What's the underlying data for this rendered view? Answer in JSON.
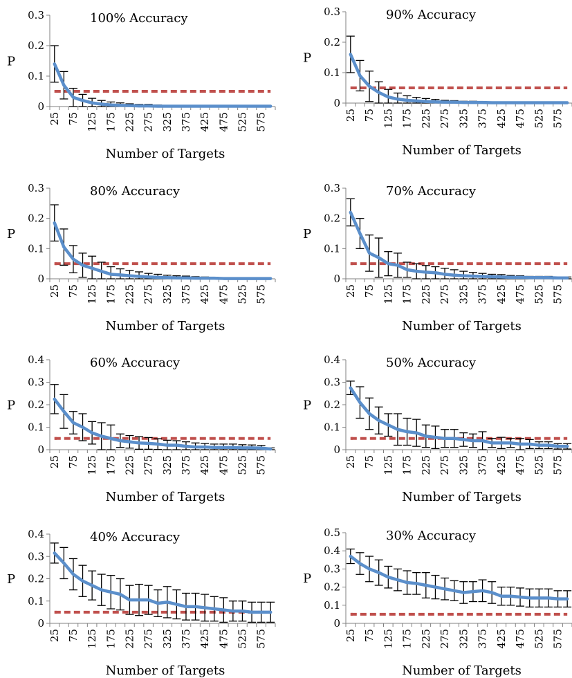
{
  "figure": {
    "panel_layout": "4 rows x 2 columns"
  },
  "colors": {
    "mean_line": "#5B8FCB",
    "threshold_line": "#C0504D",
    "error_bars": "#000000",
    "axis": "#808080"
  },
  "chart_data": [
    {
      "type": "line",
      "title": "100% Accuracy",
      "xlabel": "Number of Targets",
      "ylabel": "P",
      "categories": [
        25,
        50,
        75,
        100,
        125,
        150,
        175,
        200,
        225,
        250,
        275,
        300,
        325,
        350,
        375,
        400,
        425,
        450,
        475,
        500,
        525,
        550,
        575,
        600
      ],
      "x_tick_labels": [
        "25",
        "75",
        "125",
        "175",
        "225",
        "275",
        "325",
        "375",
        "425",
        "475",
        "525",
        "575"
      ],
      "y_ticks": [
        "0",
        "0.1",
        "0.2",
        "0.3"
      ],
      "ylim": [
        0,
        0.3
      ],
      "series": [
        {
          "values": [
            0.14,
            0.07,
            0.03,
            0.02,
            0.012,
            0.008,
            0.005,
            0.004,
            0.003,
            0.002,
            0.002,
            0.001,
            0.001,
            0.001,
            0.001,
            0.001,
            0.001,
            0.001,
            0.001,
            0.001,
            0.001,
            0.001,
            0.001,
            0.001
          ],
          "error": [
            0.06,
            0.045,
            0.03,
            0.02,
            0.015,
            0.012,
            0.01,
            0.008,
            0.006,
            0.005,
            0.005,
            0.004,
            0,
            0,
            0,
            0,
            0,
            0,
            0,
            0,
            0,
            0,
            0,
            0
          ]
        },
        {
          "values": [
            0.05,
            0.05,
            0.05,
            0.05,
            0.05,
            0.05,
            0.05,
            0.05,
            0.05,
            0.05,
            0.05,
            0.05,
            0.05,
            0.05,
            0.05,
            0.05,
            0.05,
            0.05,
            0.05,
            0.05,
            0.05,
            0.05,
            0.05,
            0.05
          ]
        }
      ],
      "grid": false
    },
    {
      "type": "line",
      "title": "90% Accuracy",
      "xlabel": "Number of Targets",
      "ylabel": "P",
      "categories": [
        25,
        50,
        75,
        100,
        125,
        150,
        175,
        200,
        225,
        250,
        275,
        300,
        325,
        350,
        375,
        400,
        425,
        450,
        475,
        500,
        525,
        550,
        575,
        600
      ],
      "x_tick_labels": [
        "25",
        "75",
        "125",
        "175",
        "225",
        "275",
        "325",
        "375",
        "425",
        "475",
        "525",
        "575"
      ],
      "y_ticks": [
        "0",
        "0.1",
        "0.2",
        "0.3"
      ],
      "ylim": [
        0,
        0.3
      ],
      "series": [
        {
          "values": [
            0.16,
            0.09,
            0.055,
            0.035,
            0.02,
            0.013,
            0.009,
            0.007,
            0.005,
            0.004,
            0.003,
            0.003,
            0.002,
            0.002,
            0.002,
            0.001,
            0.001,
            0.001,
            0.001,
            0.001,
            0.001,
            0.001,
            0.001,
            0.001
          ],
          "error": [
            0.06,
            0.05,
            0.05,
            0.035,
            0.025,
            0.02,
            0.015,
            0.012,
            0.01,
            0.008,
            0.006,
            0.005,
            0.004,
            0.004,
            0.003,
            0,
            0,
            0,
            0,
            0,
            0,
            0,
            0,
            0
          ]
        },
        {
          "values": [
            0.05,
            0.05,
            0.05,
            0.05,
            0.05,
            0.05,
            0.05,
            0.05,
            0.05,
            0.05,
            0.05,
            0.05,
            0.05,
            0.05,
            0.05,
            0.05,
            0.05,
            0.05,
            0.05,
            0.05,
            0.05,
            0.05,
            0.05,
            0.05
          ]
        }
      ],
      "grid": false
    },
    {
      "type": "line",
      "title": "80% Accuracy",
      "xlabel": "Number of Targets",
      "ylabel": "P",
      "categories": [
        25,
        50,
        75,
        100,
        125,
        150,
        175,
        200,
        225,
        250,
        275,
        300,
        325,
        350,
        375,
        400,
        425,
        450,
        475,
        500,
        525,
        550,
        575,
        600
      ],
      "x_tick_labels": [
        "25",
        "75",
        "125",
        "175",
        "225",
        "275",
        "325",
        "375",
        "425",
        "475",
        "525",
        "575"
      ],
      "y_ticks": [
        "0",
        "0.1",
        "0.2",
        "0.3"
      ],
      "ylim": [
        0,
        0.3
      ],
      "series": [
        {
          "values": [
            0.185,
            0.105,
            0.065,
            0.045,
            0.035,
            0.025,
            0.015,
            0.013,
            0.01,
            0.008,
            0.006,
            0.005,
            0.004,
            0.003,
            0.003,
            0.002,
            0.002,
            0.002,
            0.001,
            0.001,
            0.001,
            0.001,
            0.001,
            0.001
          ],
          "error": [
            0.06,
            0.06,
            0.045,
            0.04,
            0.04,
            0.03,
            0.025,
            0.02,
            0.018,
            0.015,
            0.012,
            0.01,
            0.008,
            0.007,
            0.006,
            0.005,
            0.004,
            0.003,
            0,
            0,
            0,
            0,
            0,
            0
          ]
        },
        {
          "values": [
            0.05,
            0.05,
            0.05,
            0.05,
            0.05,
            0.05,
            0.05,
            0.05,
            0.05,
            0.05,
            0.05,
            0.05,
            0.05,
            0.05,
            0.05,
            0.05,
            0.05,
            0.05,
            0.05,
            0.05,
            0.05,
            0.05,
            0.05,
            0.05
          ]
        }
      ],
      "grid": false
    },
    {
      "type": "line",
      "title": "70% Accuracy",
      "xlabel": "Number of Targets",
      "ylabel": "P",
      "categories": [
        25,
        50,
        75,
        100,
        125,
        150,
        175,
        200,
        225,
        250,
        275,
        300,
        325,
        350,
        375,
        400,
        425,
        450,
        475,
        500,
        525,
        550,
        575,
        600
      ],
      "x_tick_labels": [
        "25",
        "75",
        "125",
        "175",
        "225",
        "275",
        "325",
        "375",
        "425",
        "475",
        "525",
        "575"
      ],
      "y_ticks": [
        "0",
        "0.1",
        "0.2",
        "0.3"
      ],
      "ylim": [
        0,
        0.3
      ],
      "series": [
        {
          "values": [
            0.22,
            0.15,
            0.085,
            0.07,
            0.05,
            0.045,
            0.03,
            0.025,
            0.022,
            0.02,
            0.015,
            0.012,
            0.01,
            0.009,
            0.008,
            0.007,
            0.006,
            0.005,
            0.005,
            0.004,
            0.004,
            0.004,
            0.003,
            0.003
          ],
          "error": [
            0.045,
            0.05,
            0.06,
            0.065,
            0.04,
            0.04,
            0.025,
            0.025,
            0.022,
            0.02,
            0.02,
            0.018,
            0.015,
            0.012,
            0.01,
            0.008,
            0.008,
            0.006,
            0.005,
            0.004,
            0.004,
            0.004,
            0.003,
            0.003
          ]
        },
        {
          "values": [
            0.05,
            0.05,
            0.05,
            0.05,
            0.05,
            0.05,
            0.05,
            0.05,
            0.05,
            0.05,
            0.05,
            0.05,
            0.05,
            0.05,
            0.05,
            0.05,
            0.05,
            0.05,
            0.05,
            0.05,
            0.05,
            0.05,
            0.05,
            0.05
          ]
        }
      ],
      "grid": false
    },
    {
      "type": "line",
      "title": "60% Accuracy",
      "xlabel": "Number of Targets",
      "ylabel": "P",
      "categories": [
        25,
        50,
        75,
        100,
        125,
        150,
        175,
        200,
        225,
        250,
        275,
        300,
        325,
        350,
        375,
        400,
        425,
        450,
        475,
        500,
        525,
        550,
        575,
        600
      ],
      "x_tick_labels": [
        "25",
        "75",
        "125",
        "175",
        "225",
        "275",
        "325",
        "375",
        "425",
        "475",
        "525",
        "575"
      ],
      "y_ticks": [
        "0",
        "0.1",
        "0.2",
        "0.3",
        "0.4"
      ],
      "ylim": [
        0,
        0.4
      ],
      "series": [
        {
          "values": [
            0.225,
            0.17,
            0.12,
            0.1,
            0.075,
            0.06,
            0.05,
            0.04,
            0.035,
            0.03,
            0.028,
            0.025,
            0.02,
            0.02,
            0.015,
            0.012,
            0.012,
            0.01,
            0.01,
            0.01,
            0.008,
            0.008,
            0.007,
            0.003
          ],
          "error": [
            0.065,
            0.075,
            0.05,
            0.06,
            0.05,
            0.06,
            0.06,
            0.03,
            0.028,
            0.028,
            0.026,
            0.024,
            0.022,
            0.02,
            0.02,
            0.018,
            0.016,
            0.015,
            0.015,
            0.015,
            0.014,
            0.013,
            0.012,
            0.005
          ]
        },
        {
          "values": [
            0.05,
            0.05,
            0.05,
            0.05,
            0.05,
            0.05,
            0.05,
            0.05,
            0.05,
            0.05,
            0.05,
            0.05,
            0.05,
            0.05,
            0.05,
            0.05,
            0.05,
            0.05,
            0.05,
            0.05,
            0.05,
            0.05,
            0.05,
            0.05
          ]
        }
      ],
      "grid": false
    },
    {
      "type": "line",
      "title": "50% Accuracy",
      "xlabel": "Number of Targets",
      "ylabel": "P",
      "categories": [
        25,
        50,
        75,
        100,
        125,
        150,
        175,
        200,
        225,
        250,
        275,
        300,
        325,
        350,
        375,
        400,
        425,
        450,
        475,
        500,
        525,
        550,
        575,
        600
      ],
      "x_tick_labels": [
        "25",
        "75",
        "125",
        "175",
        "225",
        "275",
        "325",
        "375",
        "425",
        "475",
        "525",
        "575"
      ],
      "y_ticks": [
        "0",
        "0.1",
        "0.2",
        "0.3",
        "0.4"
      ],
      "ylim": [
        0,
        0.4
      ],
      "series": [
        {
          "values": [
            0.275,
            0.21,
            0.16,
            0.13,
            0.11,
            0.09,
            0.08,
            0.075,
            0.06,
            0.055,
            0.05,
            0.05,
            0.045,
            0.04,
            0.04,
            0.03,
            0.03,
            0.03,
            0.025,
            0.025,
            0.02,
            0.02,
            0.015,
            0.015
          ],
          "error": [
            0.03,
            0.07,
            0.07,
            0.06,
            0.05,
            0.07,
            0.06,
            0.06,
            0.05,
            0.05,
            0.04,
            0.04,
            0.03,
            0.03,
            0.04,
            0.02,
            0.025,
            0.02,
            0.025,
            0.02,
            0.015,
            0.015,
            0.012,
            0.012
          ]
        },
        {
          "values": [
            0.05,
            0.05,
            0.05,
            0.05,
            0.05,
            0.05,
            0.05,
            0.05,
            0.05,
            0.05,
            0.05,
            0.05,
            0.05,
            0.05,
            0.05,
            0.05,
            0.05,
            0.05,
            0.05,
            0.05,
            0.05,
            0.05,
            0.05,
            0.05
          ]
        }
      ],
      "grid": false
    },
    {
      "type": "line",
      "title": "40% Accuracy",
      "xlabel": "Number of Targets",
      "ylabel": "P",
      "categories": [
        25,
        50,
        75,
        100,
        125,
        150,
        175,
        200,
        225,
        250,
        275,
        300,
        325,
        350,
        375,
        400,
        425,
        450,
        475,
        500,
        525,
        550,
        575,
        600
      ],
      "x_tick_labels": [
        "25",
        "75",
        "125",
        "175",
        "225",
        "275",
        "325",
        "375",
        "425",
        "475",
        "525",
        "575"
      ],
      "y_ticks": [
        "0",
        "0.1",
        "0.2",
        "0.3",
        "0.4"
      ],
      "ylim": [
        0,
        0.4
      ],
      "series": [
        {
          "values": [
            0.315,
            0.27,
            0.22,
            0.19,
            0.17,
            0.15,
            0.14,
            0.13,
            0.105,
            0.105,
            0.105,
            0.09,
            0.095,
            0.085,
            0.075,
            0.075,
            0.07,
            0.065,
            0.06,
            0.055,
            0.055,
            0.05,
            0.05,
            0.05
          ],
          "error": [
            0.045,
            0.07,
            0.07,
            0.07,
            0.065,
            0.07,
            0.075,
            0.07,
            0.065,
            0.07,
            0.065,
            0.06,
            0.07,
            0.065,
            0.06,
            0.06,
            0.06,
            0.055,
            0.055,
            0.045,
            0.045,
            0.045,
            0.045,
            0.045
          ]
        },
        {
          "values": [
            0.05,
            0.05,
            0.05,
            0.05,
            0.05,
            0.05,
            0.05,
            0.05,
            0.05,
            0.05,
            0.05,
            0.05,
            0.05,
            0.05,
            0.05,
            0.05,
            0.05,
            0.05,
            0.05,
            0.05,
            0.05,
            0.05,
            0.05,
            0.05
          ]
        }
      ],
      "grid": false
    },
    {
      "type": "line",
      "title": "30% Accuracy",
      "xlabel": "Number of Targets",
      "ylabel": "P",
      "categories": [
        25,
        50,
        75,
        100,
        125,
        150,
        175,
        200,
        225,
        250,
        275,
        300,
        325,
        350,
        375,
        400,
        425,
        450,
        475,
        500,
        525,
        550,
        575,
        600
      ],
      "x_tick_labels": [
        "25",
        "75",
        "125",
        "175",
        "225",
        "275",
        "325",
        "375",
        "425",
        "475",
        "525",
        "575"
      ],
      "y_ticks": [
        "0",
        "0.1",
        "0.2",
        "0.3",
        "0.4",
        "0.5"
      ],
      "ylim": [
        0,
        0.5
      ],
      "series": [
        {
          "values": [
            0.37,
            0.33,
            0.3,
            0.28,
            0.255,
            0.24,
            0.225,
            0.22,
            0.21,
            0.2,
            0.19,
            0.18,
            0.17,
            0.175,
            0.18,
            0.17,
            0.15,
            0.15,
            0.145,
            0.14,
            0.14,
            0.14,
            0.135,
            0.135
          ],
          "error": [
            0.04,
            0.06,
            0.07,
            0.07,
            0.06,
            0.06,
            0.065,
            0.06,
            0.07,
            0.065,
            0.06,
            0.055,
            0.06,
            0.055,
            0.06,
            0.06,
            0.05,
            0.05,
            0.05,
            0.05,
            0.05,
            0.05,
            0.045,
            0.045
          ]
        },
        {
          "values": [
            0.05,
            0.05,
            0.05,
            0.05,
            0.05,
            0.05,
            0.05,
            0.05,
            0.05,
            0.05,
            0.05,
            0.05,
            0.05,
            0.05,
            0.05,
            0.05,
            0.05,
            0.05,
            0.05,
            0.05,
            0.05,
            0.05,
            0.05,
            0.05
          ]
        }
      ],
      "grid": false
    }
  ]
}
